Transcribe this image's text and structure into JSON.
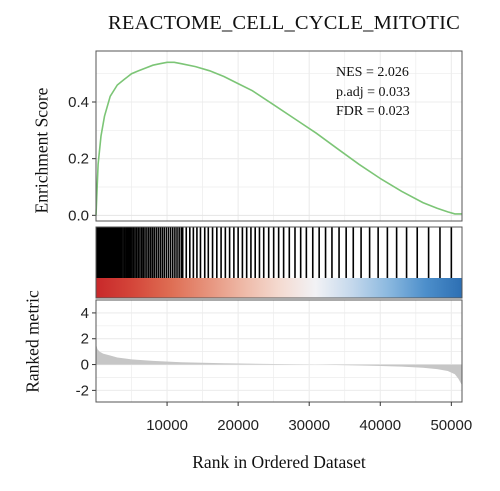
{
  "chart_data": {
    "type": "line",
    "title": "REACTOME_CELL_CYCLE_MITOTIC",
    "xlabel": "Rank in Ordered Dataset",
    "stats": [
      "NES = 2.026",
      "p.adj = 0.033",
      "FDR = 0.023"
    ],
    "xlim": [
      0,
      51500
    ],
    "x_ticks": [
      10000,
      20000,
      30000,
      40000,
      50000
    ],
    "grid": true,
    "enrichment_panel": {
      "ylabel": "Enrichment Score",
      "ylim": [
        -0.02,
        0.58
      ],
      "y_ticks": [
        0.0,
        0.2,
        0.4
      ],
      "line_color": "#7cc576",
      "series": [
        {
          "x": [
            0,
            300,
            700,
            1200,
            2000,
            3000,
            4000,
            5000,
            6000,
            7000,
            8000,
            9000,
            10000,
            11000,
            12000,
            14000,
            16000,
            18000,
            20000,
            22000,
            25000,
            28000,
            31000,
            34000,
            37000,
            40000,
            43000,
            46000,
            48000,
            49500,
            50500,
            51500
          ],
          "y": [
            0.0,
            0.18,
            0.28,
            0.35,
            0.42,
            0.46,
            0.48,
            0.5,
            0.51,
            0.52,
            0.53,
            0.535,
            0.54,
            0.54,
            0.535,
            0.525,
            0.51,
            0.49,
            0.465,
            0.44,
            0.39,
            0.34,
            0.29,
            0.235,
            0.18,
            0.13,
            0.085,
            0.045,
            0.025,
            0.012,
            0.005,
            0.005
          ]
        }
      ]
    },
    "hits_panel": {
      "hit_ranks": [
        120,
        260,
        380,
        520,
        660,
        800,
        950,
        1100,
        1250,
        1400,
        1560,
        1720,
        1880,
        2040,
        2200,
        2360,
        2520,
        2700,
        2880,
        3060,
        3240,
        3420,
        3600,
        3800,
        4000,
        4200,
        4400,
        4600,
        4820,
        5040,
        5260,
        5480,
        5700,
        5940,
        6180,
        6420,
        6660,
        6900,
        7160,
        7420,
        7680,
        7940,
        8200,
        8480,
        8760,
        9040,
        9320,
        9600,
        9900,
        10200,
        10500,
        10800,
        11100,
        11400,
        11700,
        12000,
        12200,
        12700,
        13200,
        13700,
        14200,
        14700,
        15300,
        15800,
        16400,
        17000,
        17600,
        18200,
        18800,
        19400,
        20000,
        20600,
        21200,
        21800,
        22400,
        23000,
        23600,
        24300,
        25000,
        25700,
        26400,
        27200,
        28000,
        28800,
        29600,
        30500,
        31400,
        32300,
        33200,
        34200,
        35200,
        36200,
        37300,
        38500,
        39700,
        41000,
        42300,
        43700,
        45200,
        46800,
        48400,
        50000
      ],
      "rank_metric_gradient": [
        "#c8282a",
        "#d4463a",
        "#de6c52",
        "#e6917a",
        "#eeb8a6",
        "#f4dad0",
        "#f2f2f5",
        "#c4d8ec",
        "#8ab8df",
        "#4d8fcb",
        "#2d6fb3"
      ]
    },
    "ranked_metric_panel": {
      "ylabel": "Ranked metric",
      "ylim": [
        -2.9,
        5.0
      ],
      "y_ticks": [
        -2,
        0,
        2,
        4
      ],
      "fill_color": "#c6c6c6",
      "series": [
        {
          "x": [
            0,
            200,
            500,
            1000,
            2000,
            3000,
            5000,
            8000,
            12000,
            18000,
            25000,
            32000,
            38000,
            43000,
            46000,
            48000,
            49500,
            50500,
            51000,
            51500
          ],
          "y": [
            1.6,
            1.2,
            1.0,
            0.85,
            0.7,
            0.55,
            0.4,
            0.28,
            0.18,
            0.1,
            0.04,
            -0.02,
            -0.08,
            -0.16,
            -0.25,
            -0.35,
            -0.5,
            -0.75,
            -1.1,
            -1.6
          ]
        }
      ]
    }
  }
}
